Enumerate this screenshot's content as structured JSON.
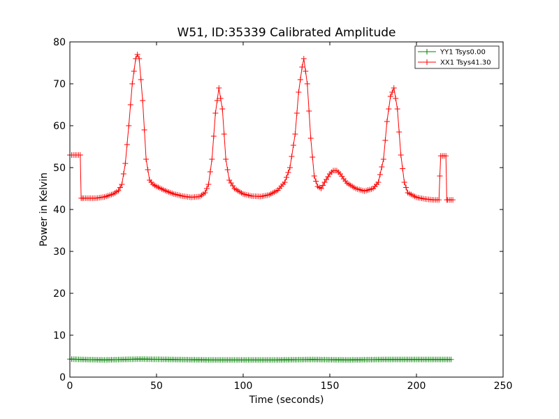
{
  "chart_data": {
    "type": "line",
    "title": "W51, ID:35339 Calibrated Amplitude",
    "xlabel": "Time (seconds)",
    "ylabel": "Power in Kelvin",
    "xlim": [
      0,
      250
    ],
    "ylim": [
      0,
      80
    ],
    "xticks": [
      0,
      50,
      100,
      150,
      200,
      250
    ],
    "yticks": [
      0,
      10,
      20,
      30,
      40,
      50,
      60,
      70,
      80
    ],
    "grid": false,
    "legend_position": "top-right",
    "marker": "+",
    "series": [
      {
        "name": "YY1 Tsys0.00",
        "color": "#008000",
        "x": [
          0,
          8,
          20,
          40,
          60,
          80,
          100,
          120,
          140,
          160,
          180,
          200,
          220
        ],
        "y": [
          4.3,
          4.2,
          4.1,
          4.3,
          4.2,
          4.1,
          4.1,
          4.1,
          4.2,
          4.1,
          4.2,
          4.2,
          4.2
        ]
      },
      {
        "name": "XX1 Tsys41.30",
        "color": "#ff0000",
        "x": [
          0,
          3,
          6,
          6.5,
          8,
          10,
          15,
          20,
          25,
          28,
          30,
          32,
          34,
          36,
          38,
          39,
          40,
          42,
          44,
          46,
          48,
          50,
          55,
          60,
          65,
          70,
          75,
          78,
          80,
          82,
          84,
          86,
          88,
          90,
          92,
          95,
          100,
          105,
          110,
          115,
          120,
          124,
          127,
          130,
          132,
          134,
          135,
          137,
          139,
          141,
          143,
          145,
          147,
          150,
          152,
          154,
          156,
          158,
          160,
          165,
          170,
          175,
          178,
          181,
          183,
          185,
          187,
          189,
          191,
          193,
          195,
          200,
          205,
          210,
          213,
          213.5,
          214,
          216,
          217,
          217.5,
          218,
          221
        ],
        "y": [
          53,
          53,
          53,
          42.7,
          42.7,
          42.7,
          42.7,
          43,
          43.7,
          44.5,
          46,
          51,
          60,
          70,
          76,
          77,
          76,
          66,
          52,
          47,
          46,
          45.5,
          44.5,
          43.7,
          43.2,
          42.9,
          43.1,
          44,
          46,
          52,
          63,
          69,
          64,
          52,
          47,
          45,
          43.7,
          43.2,
          43.1,
          43.5,
          44.6,
          46.5,
          50,
          58,
          68,
          74,
          76,
          70,
          57,
          48,
          45.5,
          45,
          46.5,
          48.5,
          49.3,
          49.3,
          48.5,
          47.3,
          46.3,
          45,
          44.4,
          45,
          46.5,
          52,
          61,
          67,
          69,
          64,
          53,
          46.5,
          44,
          42.9,
          42.5,
          42.3,
          42.3,
          48,
          52.8,
          52.8,
          52.8,
          42.3,
          42.3,
          42.3
        ]
      }
    ]
  }
}
